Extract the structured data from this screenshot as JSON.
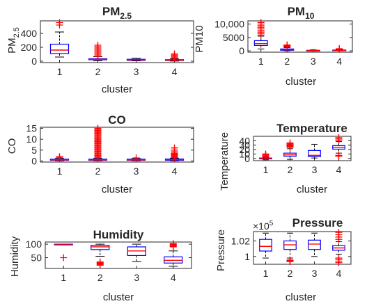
{
  "chart_data": [
    {
      "type": "boxplot",
      "title_main": "PM",
      "title_sub": "2.5",
      "ylabel_main": "PM",
      "ylabel_sub": "2.5",
      "xlabel": "cluster",
      "categories": [
        "1",
        "2",
        "3",
        "4"
      ],
      "ylim": [
        -20,
        580
      ],
      "yticks": [
        0,
        200,
        400
      ],
      "ytick_labels": [
        "0",
        "200",
        "400"
      ],
      "boxes": [
        {
          "q1": 110,
          "median": 160,
          "q3": 245,
          "whisker_low": 60,
          "whisker_high": 420,
          "outliers": [
            520,
            555
          ]
        },
        {
          "q1": 20,
          "median": 25,
          "q3": 35,
          "whisker_low": 5,
          "whisker_high": 65,
          "outliers": [
            70,
            90,
            110,
            130,
            150,
            170,
            190,
            210,
            230
          ]
        },
        {
          "q1": 12,
          "median": 20,
          "q3": 28,
          "whisker_low": 5,
          "whisker_high": 42,
          "outliers": []
        },
        {
          "q1": 10,
          "median": 15,
          "q3": 22,
          "whisker_low": 2,
          "whisker_high": 33,
          "outliers": [
            45,
            60,
            75,
            90,
            105
          ]
        }
      ]
    },
    {
      "type": "boxplot",
      "title_main": "PM",
      "title_sub": "10",
      "ylabel_main": "PM10",
      "ylabel_sub": "",
      "xlabel": "cluster",
      "categories": [
        "1",
        "2",
        "3",
        "4"
      ],
      "ylim": [
        -500,
        11200
      ],
      "yticks": [
        0,
        5000,
        10000
      ],
      "ytick_labels": [
        "0",
        "5000",
        "10,000"
      ],
      "boxes": [
        {
          "q1": 2000,
          "median": 2700,
          "q3": 3800,
          "whisker_low": 700,
          "whisker_high": 5500,
          "outliers": [
            5900,
            6500,
            7000,
            7600,
            8200,
            8800,
            9400,
            10000,
            10600
          ]
        },
        {
          "q1": 200,
          "median": 400,
          "q3": 700,
          "whisker_low": 50,
          "whisker_high": 1200,
          "outliers": [
            1400,
            1600,
            1800,
            2000,
            2200
          ]
        },
        {
          "q1": 50,
          "median": 100,
          "q3": 200,
          "whisker_low": 10,
          "whisker_high": 350,
          "outliers": []
        },
        {
          "q1": 80,
          "median": 150,
          "q3": 300,
          "whisker_low": 10,
          "whisker_high": 500,
          "outliers": [
            600,
            800
          ]
        }
      ]
    },
    {
      "type": "boxplot",
      "title_main": "CO",
      "title_sub": "",
      "ylabel_main": "CO",
      "ylabel_sub": "",
      "xlabel": "cluster",
      "categories": [
        "1",
        "2",
        "3",
        "4"
      ],
      "ylim": [
        -0.5,
        15.5
      ],
      "yticks": [
        0,
        5,
        10,
        15
      ],
      "ytick_labels": [
        "0",
        "5",
        "10",
        "15"
      ],
      "boxes": [
        {
          "q1": 0.3,
          "median": 0.5,
          "q3": 0.8,
          "whisker_low": 0.1,
          "whisker_high": 1.2,
          "outliers": [
            1.5,
            2.0
          ]
        },
        {
          "q1": 0.3,
          "median": 0.5,
          "q3": 0.8,
          "whisker_low": 0.1,
          "whisker_high": 1.2,
          "outliers": [
            1.5,
            2,
            2.5,
            3,
            3.5,
            4,
            4.5,
            5,
            5.5,
            6,
            6.5,
            7,
            7.5,
            8,
            8.5,
            9,
            9.5,
            10,
            10.5,
            11,
            11.5,
            12,
            12.5,
            13,
            13.5,
            14,
            14.5,
            15
          ]
        },
        {
          "q1": 0.3,
          "median": 0.5,
          "q3": 0.8,
          "whisker_low": 0.1,
          "whisker_high": 1.2,
          "outliers": [
            1.4
          ]
        },
        {
          "q1": 0.3,
          "median": 0.6,
          "q3": 0.9,
          "whisker_low": 0.1,
          "whisker_high": 1.3,
          "outliers": [
            1.6,
            2.0,
            2.4,
            2.8,
            3.2,
            3.6,
            4.2,
            5.0,
            6.0
          ]
        }
      ]
    },
    {
      "type": "boxplot",
      "title_main": "Temperature",
      "title_sub": "",
      "ylabel_main": "Temperature",
      "ylabel_sub": "",
      "xlabel": "cluster",
      "categories": [
        "1",
        "2",
        "3",
        "4"
      ],
      "ylim": [
        -5,
        50
      ],
      "yticks": [
        0,
        10,
        20,
        30,
        40
      ],
      "ytick_labels": [
        "0",
        "10",
        "20",
        "30",
        "40"
      ],
      "boxes": [
        {
          "q1": -1,
          "median": 0,
          "q3": 1,
          "whisker_low": -3,
          "whisker_high": 3,
          "outliers": [
            4,
            6,
            8,
            10
          ]
        },
        {
          "q1": 5,
          "median": 8,
          "q3": 12,
          "whisker_low": -2,
          "whisker_high": 22,
          "outliers": [
            25,
            27,
            29,
            31,
            33,
            35
          ]
        },
        {
          "q1": 4,
          "median": 7,
          "q3": 18,
          "whisker_low": 1,
          "whisker_high": 32,
          "outliers": []
        },
        {
          "q1": 21,
          "median": 25,
          "q3": 29,
          "whisker_low": 12,
          "whisker_high": 38,
          "outliers": [
            5,
            7,
            41,
            44,
            47
          ]
        }
      ]
    },
    {
      "type": "boxplot",
      "title_main": "Humidity",
      "title_sub": "",
      "ylabel_main": "Humidity",
      "ylabel_sub": "",
      "xlabel": "cluster",
      "categories": [
        "1",
        "2",
        "3",
        "4"
      ],
      "ylim": [
        10,
        108
      ],
      "yticks": [
        50,
        100
      ],
      "ytick_labels": [
        "50",
        "100"
      ],
      "boxes": [
        {
          "q1": 100,
          "median": 100,
          "q3": 100,
          "whisker_low": 100,
          "whisker_high": 100,
          "outliers": [
            50
          ]
        },
        {
          "q1": 80,
          "median": 90,
          "q3": 96,
          "whisker_low": 55,
          "whisker_high": 100,
          "outliers": [
            22,
            25,
            28,
            31,
            34
          ]
        },
        {
          "q1": 58,
          "median": 75,
          "q3": 90,
          "whisker_low": 35,
          "whisker_high": 100,
          "outliers": []
        },
        {
          "q1": 30,
          "median": 40,
          "q3": 53,
          "whisker_low": 18,
          "whisker_high": 75,
          "outliers": [
            90,
            93,
            96,
            99,
            102
          ]
        }
      ]
    },
    {
      "type": "boxplot",
      "title_main": "Pressure",
      "title_sub": "",
      "ylabel_main": "Pressure",
      "ylabel_sub": "",
      "multiplier_base": "×10",
      "multiplier_exp": "5",
      "xlabel": "cluster",
      "categories": [
        "1",
        "2",
        "3",
        "4"
      ],
      "ylim": [
        0.99,
        1.032
      ],
      "yticks": [
        1.0,
        1.02
      ],
      "ytick_labels": [
        "1",
        "1.02"
      ],
      "boxes": [
        {
          "q1": 1.007,
          "median": 1.013,
          "q3": 1.022,
          "whisker_low": 0.998,
          "whisker_high": 1.03,
          "outliers": []
        },
        {
          "q1": 1.009,
          "median": 1.015,
          "q3": 1.02,
          "whisker_low": 0.998,
          "whisker_high": 1.03,
          "outliers": [
            0.9935,
            0.9945,
            0.9955
          ]
        },
        {
          "q1": 1.009,
          "median": 1.016,
          "q3": 1.021,
          "whisker_low": 1.0,
          "whisker_high": 1.03,
          "outliers": []
        },
        {
          "q1": 1.008,
          "median": 1.011,
          "q3": 1.014,
          "whisker_low": 1.003,
          "whisker_high": 1.019,
          "outliers": [
            0.992,
            0.994,
            0.996,
            0.998,
            1.022,
            1.025,
            1.028,
            1.031
          ]
        }
      ]
    }
  ],
  "colors": {
    "box": "#0000ff",
    "median": "#ff0000",
    "outlier": "#ff0000",
    "whisker": "#000000",
    "axis": "#262626"
  }
}
